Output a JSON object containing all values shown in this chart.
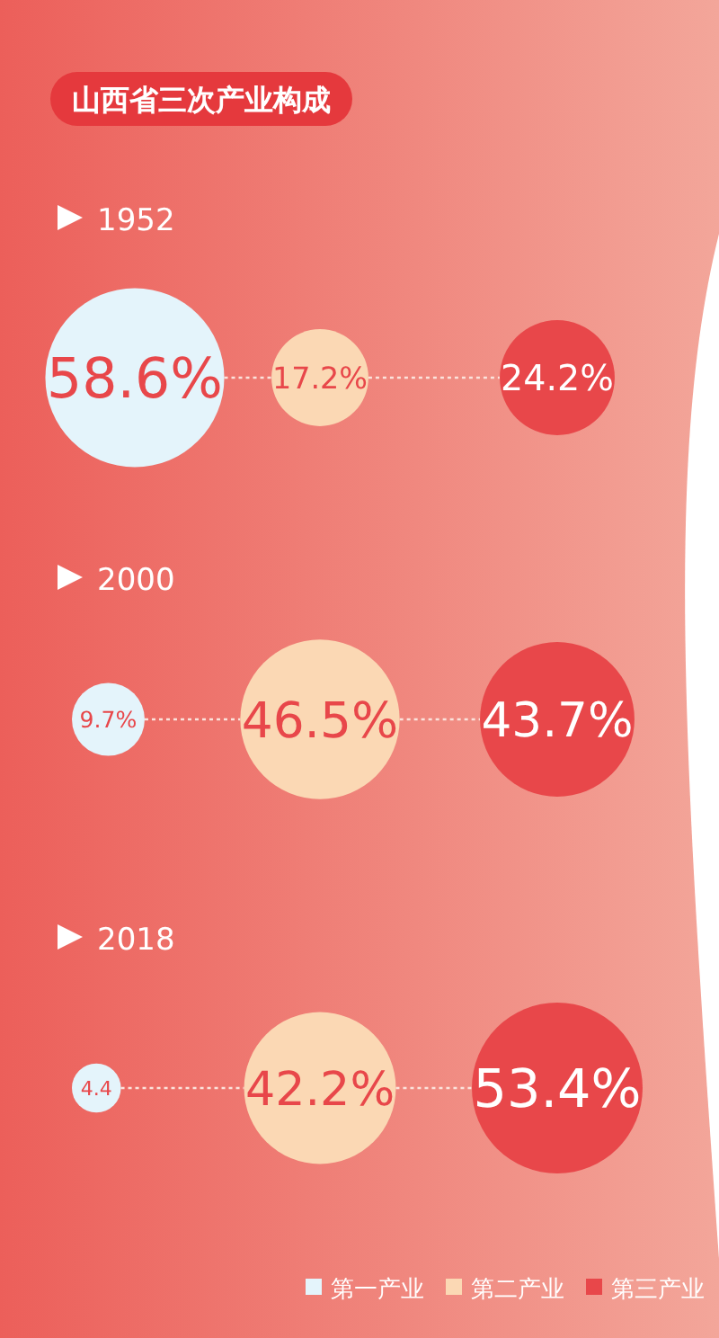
{
  "chart_data": {
    "type": "other",
    "title": "山西省三次产业构成",
    "categories": [
      "1952",
      "2000",
      "2018"
    ],
    "series": [
      {
        "name": "第一产业",
        "color": "#e4f4fb",
        "values": [
          58.6,
          9.7,
          4.4
        ],
        "value_labels": [
          "58.6%",
          "9.7%",
          "4.4"
        ]
      },
      {
        "name": "第二产业",
        "color": "#fbd8b4",
        "values": [
          17.2,
          46.5,
          42.2
        ],
        "value_labels": [
          "17.2%",
          "46.5%",
          "42.2%"
        ]
      },
      {
        "name": "第三产业",
        "color": "#e8474a",
        "values": [
          24.2,
          43.7,
          53.4
        ],
        "value_labels": [
          "24.2%",
          "43.7%",
          "53.4%"
        ]
      }
    ],
    "legend": "bottom right"
  }
}
